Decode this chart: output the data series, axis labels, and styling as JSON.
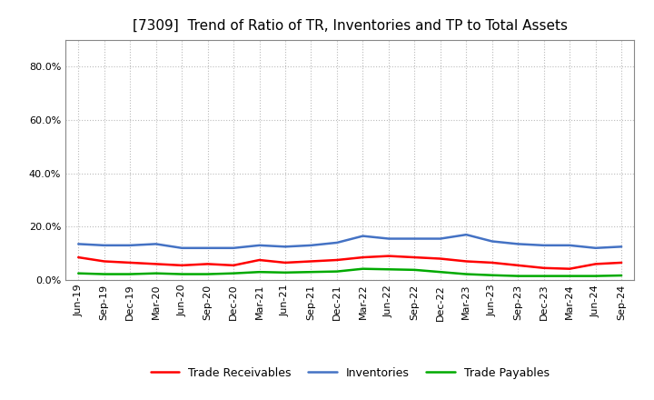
{
  "title": "[7309]  Trend of Ratio of TR, Inventories and TP to Total Assets",
  "x_labels": [
    "Jun-19",
    "Sep-19",
    "Dec-19",
    "Mar-20",
    "Jun-20",
    "Sep-20",
    "Dec-20",
    "Mar-21",
    "Jun-21",
    "Sep-21",
    "Dec-21",
    "Mar-22",
    "Jun-22",
    "Sep-22",
    "Dec-22",
    "Mar-23",
    "Jun-23",
    "Sep-23",
    "Dec-23",
    "Mar-24",
    "Jun-24",
    "Sep-24"
  ],
  "trade_receivables": [
    0.085,
    0.07,
    0.065,
    0.06,
    0.055,
    0.06,
    0.055,
    0.075,
    0.065,
    0.07,
    0.075,
    0.085,
    0.09,
    0.085,
    0.08,
    0.07,
    0.065,
    0.055,
    0.045,
    0.042,
    0.06,
    0.065
  ],
  "inventories": [
    0.135,
    0.13,
    0.13,
    0.135,
    0.12,
    0.12,
    0.12,
    0.13,
    0.125,
    0.13,
    0.14,
    0.165,
    0.155,
    0.155,
    0.155,
    0.17,
    0.145,
    0.135,
    0.13,
    0.13,
    0.12,
    0.125
  ],
  "trade_payables": [
    0.025,
    0.022,
    0.022,
    0.025,
    0.022,
    0.022,
    0.025,
    0.03,
    0.028,
    0.03,
    0.032,
    0.042,
    0.04,
    0.038,
    0.03,
    0.022,
    0.018,
    0.015,
    0.015,
    0.015,
    0.015,
    0.017
  ],
  "ylim": [
    0.0,
    0.9
  ],
  "yticks": [
    0.0,
    0.2,
    0.4,
    0.6,
    0.8
  ],
  "ytick_labels": [
    "0.0%",
    "20.0%",
    "40.0%",
    "60.0%",
    "80.0%"
  ],
  "line_colors": {
    "trade_receivables": "#ff0000",
    "inventories": "#4472c4",
    "trade_payables": "#00aa00"
  },
  "line_width": 1.8,
  "legend_labels": [
    "Trade Receivables",
    "Inventories",
    "Trade Payables"
  ],
  "background_color": "#ffffff",
  "grid_color": "#bbbbbb",
  "title_fontsize": 11,
  "tick_fontsize": 8,
  "legend_fontsize": 9
}
